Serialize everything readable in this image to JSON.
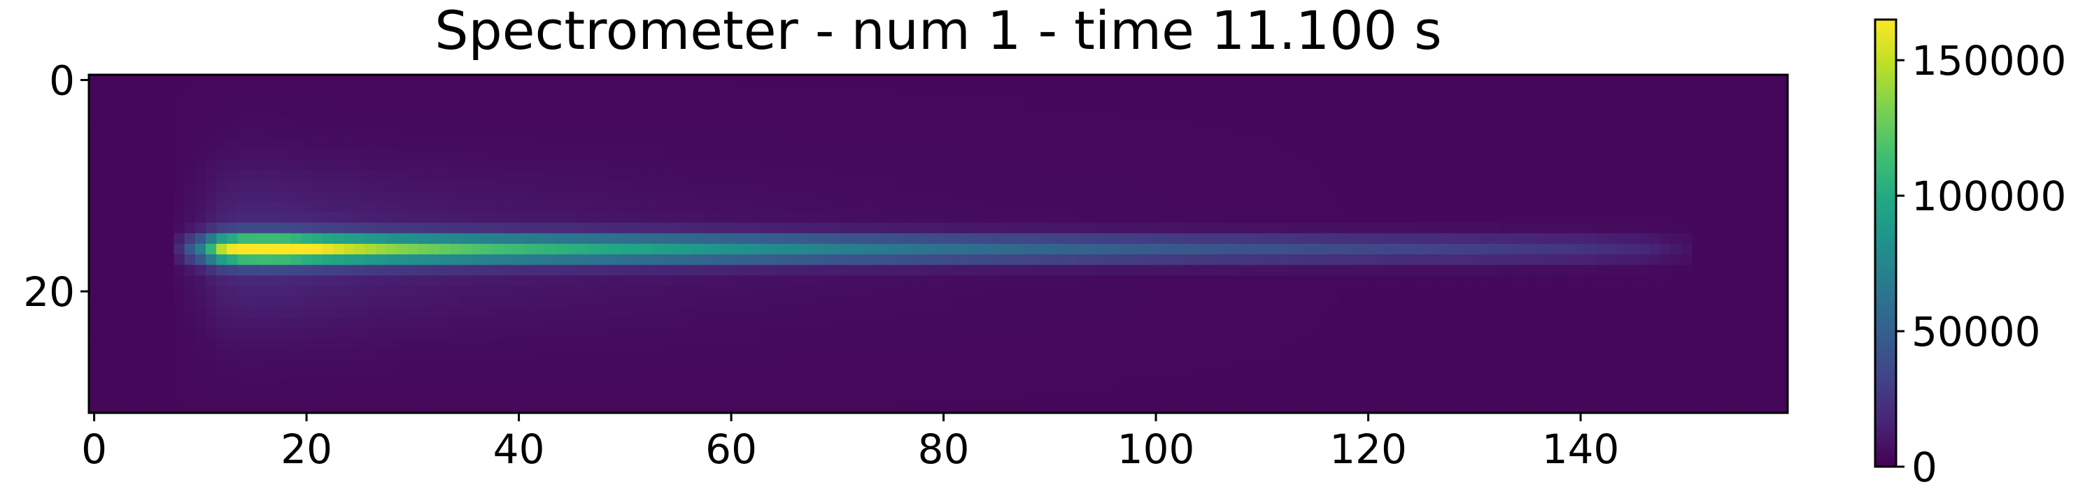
{
  "chart_data": {
    "type": "heatmap",
    "title": "Spectrometer - num 1 - time 11.100 s",
    "xlabel": "",
    "ylabel": "",
    "x_range": [
      -0.5,
      159.5
    ],
    "y_range": [
      -0.5,
      31.5
    ],
    "x_ticks": [
      0,
      20,
      40,
      60,
      80,
      100,
      120,
      140
    ],
    "y_ticks": [
      0,
      20
    ],
    "colormap": "viridis",
    "colorbar": {
      "range": [
        0,
        165000
      ],
      "ticks": [
        0,
        50000,
        100000,
        150000
      ]
    },
    "grid": false,
    "image": {
      "columns": 160,
      "rows": 32,
      "background_level": 3000,
      "band_center_row": 16,
      "band_start_column": 8,
      "band_end_column": 150,
      "peak_column": 16,
      "peak_value": 162000,
      "profile": [
        {
          "column": 8,
          "value": 15000
        },
        {
          "column": 10,
          "value": 60000
        },
        {
          "column": 12,
          "value": 130000
        },
        {
          "column": 14,
          "value": 158000
        },
        {
          "column": 16,
          "value": 162000
        },
        {
          "column": 18,
          "value": 160000
        },
        {
          "column": 20,
          "value": 150000
        },
        {
          "column": 24,
          "value": 135000
        },
        {
          "column": 28,
          "value": 122000
        },
        {
          "column": 34,
          "value": 110000
        },
        {
          "column": 40,
          "value": 100000
        },
        {
          "column": 50,
          "value": 88000
        },
        {
          "column": 60,
          "value": 76000
        },
        {
          "column": 70,
          "value": 65000
        },
        {
          "column": 80,
          "value": 56000
        },
        {
          "column": 90,
          "value": 49000
        },
        {
          "column": 100,
          "value": 43000
        },
        {
          "column": 110,
          "value": 38000
        },
        {
          "column": 120,
          "value": 33000
        },
        {
          "column": 130,
          "value": 28000
        },
        {
          "column": 140,
          "value": 22000
        },
        {
          "column": 146,
          "value": 15000
        },
        {
          "column": 150,
          "value": 6000
        }
      ]
    }
  }
}
